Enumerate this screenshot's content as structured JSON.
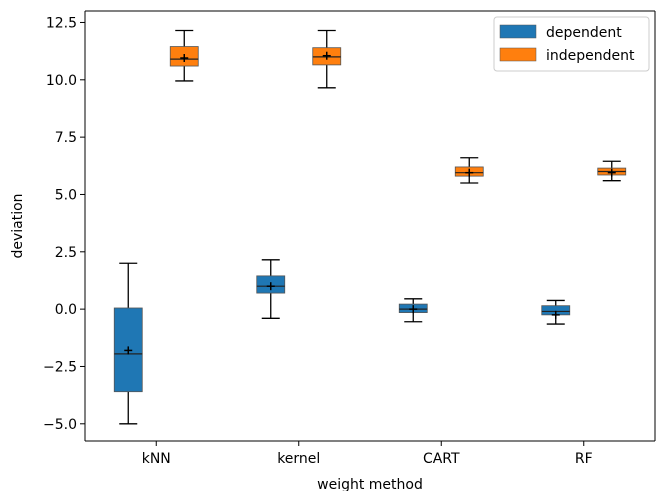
{
  "chart_data": {
    "type": "box",
    "title": "",
    "xlabel": "weight method",
    "ylabel": "deviation",
    "categories": [
      "kNN",
      "kernel",
      "CART",
      "RF"
    ],
    "ylim": [
      -5.75,
      13.0
    ],
    "yticks": [
      -5.0,
      -2.5,
      0.0,
      2.5,
      5.0,
      7.5,
      10.0,
      12.5
    ],
    "ytick_labels": [
      "−5.0",
      "−2.5",
      "0.0",
      "2.5",
      "5.0",
      "7.5",
      "10.0",
      "12.5"
    ],
    "legend_position": "top-right",
    "series": [
      {
        "name": "dependent",
        "color": "#1f77b4",
        "boxes": [
          {
            "category": "kNN",
            "whisker_low": -5.0,
            "q1": -3.6,
            "median": -1.95,
            "q3": 0.05,
            "whisker_high": 2.0,
            "mean": -1.8
          },
          {
            "category": "kernel",
            "whisker_low": -0.4,
            "q1": 0.7,
            "median": 1.0,
            "q3": 1.45,
            "whisker_high": 2.15,
            "mean": 1.0
          },
          {
            "category": "CART",
            "whisker_low": -0.55,
            "q1": -0.15,
            "median": 0.0,
            "q3": 0.22,
            "whisker_high": 0.45,
            "mean": 0.0
          },
          {
            "category": "RF",
            "whisker_low": -0.65,
            "q1": -0.25,
            "median": -0.1,
            "q3": 0.15,
            "whisker_high": 0.38,
            "mean": -0.25
          }
        ]
      },
      {
        "name": "independent",
        "color": "#ff7f0e",
        "boxes": [
          {
            "category": "kNN",
            "whisker_low": 9.95,
            "q1": 10.6,
            "median": 10.9,
            "q3": 11.45,
            "whisker_high": 12.15,
            "mean": 10.95
          },
          {
            "category": "kernel",
            "whisker_low": 9.65,
            "q1": 10.65,
            "median": 11.0,
            "q3": 11.4,
            "whisker_high": 12.15,
            "mean": 11.05
          },
          {
            "category": "CART",
            "whisker_low": 5.5,
            "q1": 5.8,
            "median": 5.95,
            "q3": 6.2,
            "whisker_high": 6.6,
            "mean": 5.95
          },
          {
            "category": "RF",
            "whisker_low": 5.6,
            "q1": 5.85,
            "median": 6.0,
            "q3": 6.15,
            "whisker_high": 6.45,
            "mean": 5.95
          }
        ]
      }
    ]
  }
}
